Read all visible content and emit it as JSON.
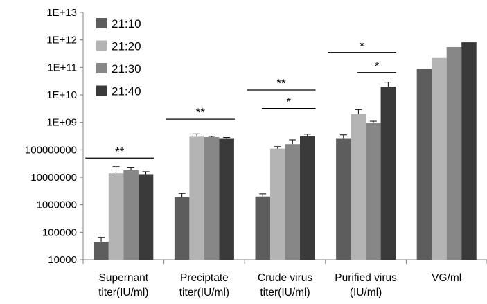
{
  "chart_data": {
    "type": "bar",
    "yscale": "log",
    "ylim": [
      10000,
      10000000000000
    ],
    "yticks": [
      "10000",
      "100000",
      "1000000",
      "10000000",
      "100000000",
      "1E+09",
      "1E+10",
      "1E+11",
      "1E+12",
      "1E+13"
    ],
    "categories": [
      [
        "Supernant",
        "titer(IU/ml)"
      ],
      [
        "Preciptate",
        "titer(IU/ml)"
      ],
      [
        "Crude virus",
        "titer(IU/ml)"
      ],
      [
        "Purified virus",
        "(IU/ml)"
      ],
      [
        "VG/ml"
      ]
    ],
    "series": [
      {
        "name": "21:10",
        "color": "#5d5d5d",
        "values": [
          45000,
          1900000,
          2000000,
          250000000,
          90000000000
        ],
        "errors": [
          20000,
          700000,
          500000,
          100000000,
          null
        ]
      },
      {
        "name": "21:20",
        "color": "#b4b4b4",
        "values": [
          14000000,
          300000000,
          110000000,
          2000000000,
          220000000000
        ],
        "errors": [
          11000000,
          80000000,
          20000000,
          900000000,
          null
        ]
      },
      {
        "name": "21:30",
        "color": "#878787",
        "values": [
          18000000,
          290000000,
          160000000,
          950000000,
          550000000000
        ],
        "errors": [
          5000000,
          20000000,
          70000000,
          150000000,
          null
        ]
      },
      {
        "name": "21:40",
        "color": "#3a3a3a",
        "values": [
          13000000,
          250000000,
          310000000,
          20000000000,
          820000000000
        ],
        "errors": [
          3000000,
          30000000,
          60000000,
          9000000000,
          null
        ]
      }
    ],
    "legend": "top-left",
    "grid": false,
    "significance": [
      {
        "label": "**",
        "category": 0,
        "from_series": 0,
        "to_series": 3,
        "y": 50000000
      },
      {
        "label": "**",
        "category": 1,
        "from_series": 0,
        "to_series": 3,
        "y": 1300000000
      },
      {
        "label": "**",
        "category": 2,
        "from_series": 0,
        "to_series": 3,
        "y": 15000000000
      },
      {
        "label": "*",
        "category": 2,
        "from_series": 1,
        "to_series": 3,
        "y": 3200000000
      },
      {
        "label": "*",
        "category": 3,
        "from_series": 0,
        "to_series": 3,
        "y": 350000000000
      },
      {
        "label": "*",
        "category": 3,
        "from_series": 2,
        "to_series": 3,
        "y": 65000000000
      }
    ]
  }
}
